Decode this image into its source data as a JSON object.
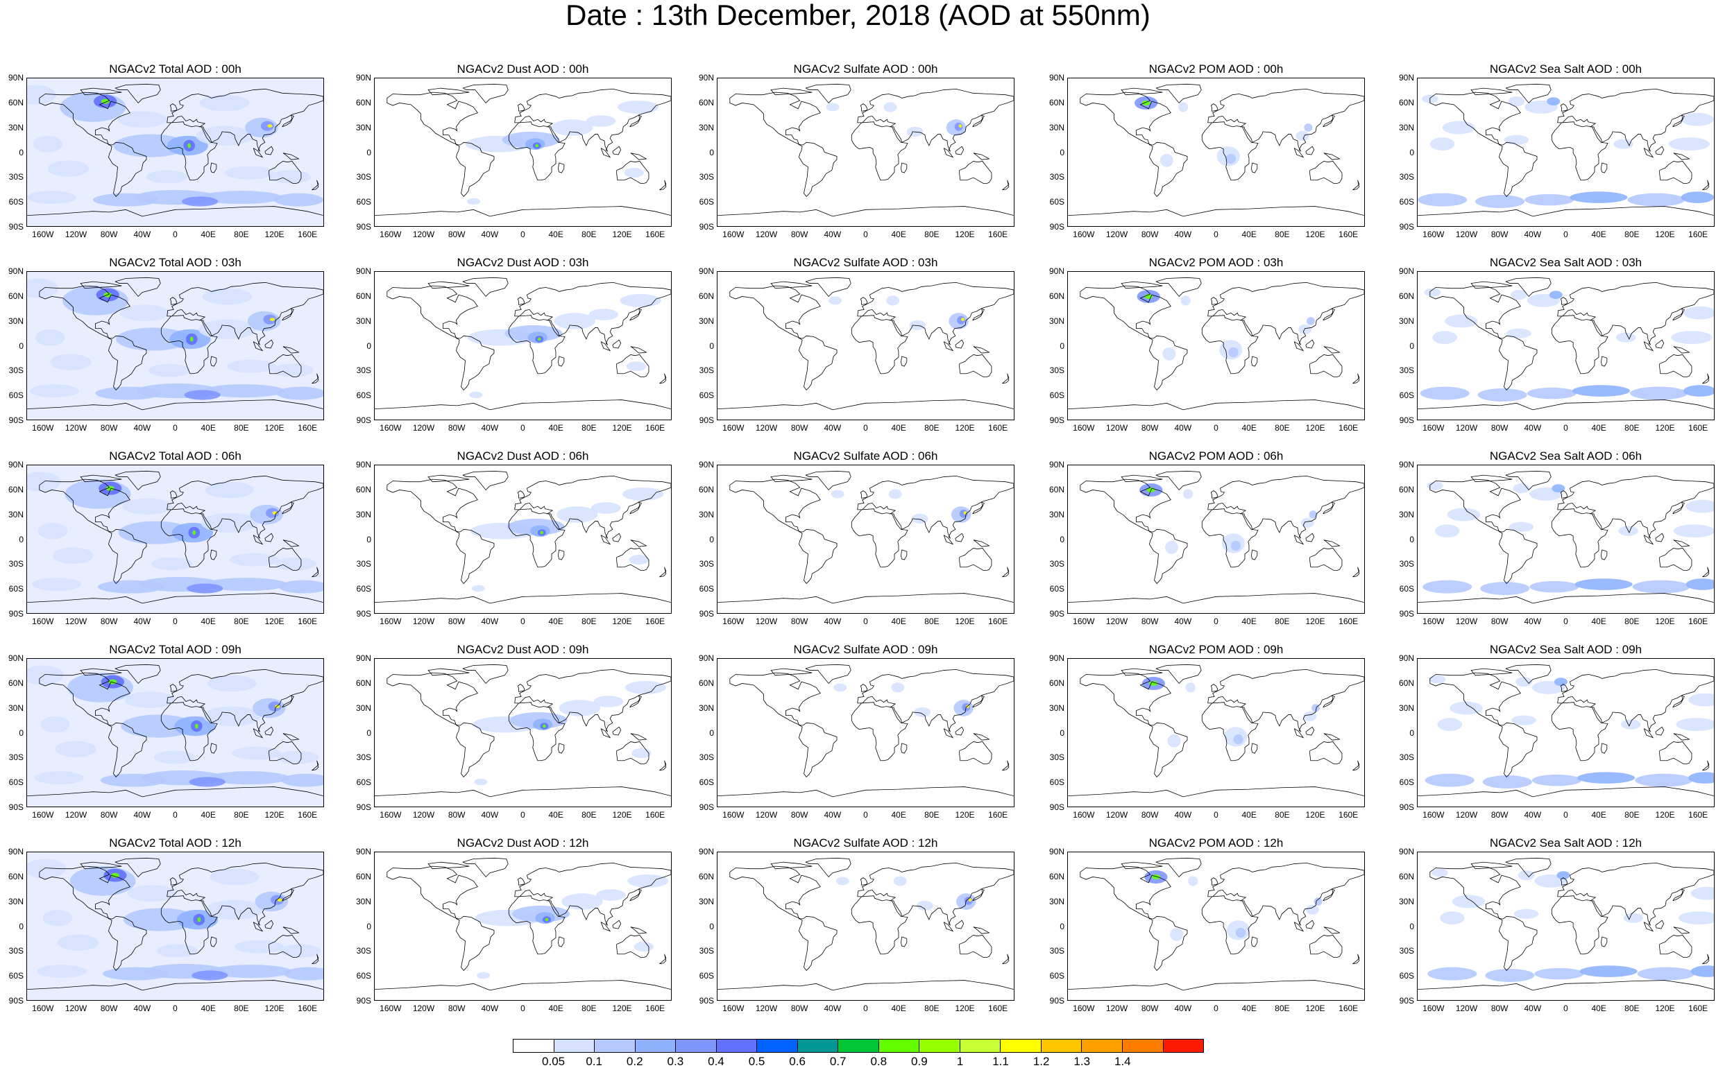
{
  "title": "Date : 13th December, 2018 (AOD at 550nm)",
  "lat_labels": [
    "90N",
    "60N",
    "30N",
    "0",
    "30S",
    "60S",
    "90S"
  ],
  "lon_labels": [
    "160W",
    "120W",
    "80W",
    "40W",
    "0",
    "40E",
    "80E",
    "120E",
    "160E"
  ],
  "species": [
    "total",
    "dust",
    "sulfate",
    "pom",
    "seasalt"
  ],
  "panels": [
    [
      "NGACv2 Total AOD : 00h",
      "NGACv2 Dust AOD : 00h",
      "NGACv2 Sulfate AOD : 00h",
      "NGACv2 POM AOD : 00h",
      "NGACv2 Sea Salt AOD : 00h"
    ],
    [
      "NGACv2 Total AOD : 03h",
      "NGACv2 Dust AOD : 03h",
      "NGACv2 Sulfate AOD : 03h",
      "NGACv2 POM AOD : 03h",
      "NGACv2 Sea Salt AOD : 03h"
    ],
    [
      "NGACv2 Total AOD : 06h",
      "NGACv2 Dust AOD : 06h",
      "NGACv2 Sulfate AOD : 06h",
      "NGACv2 POM AOD : 06h",
      "NGACv2 Sea Salt AOD : 06h"
    ],
    [
      "NGACv2 Total AOD : 09h",
      "NGACv2 Dust AOD : 09h",
      "NGACv2 Sulfate AOD : 09h",
      "NGACv2 POM AOD : 09h",
      "NGACv2 Sea Salt  AOD : 09h"
    ],
    [
      "NGACv2 Total AOD  : 12h",
      "NGACv2 Dust AOD : 12h",
      "NGACv2 Sulfate AOD : 12h",
      "NGACv2 POM  AOD : 12h",
      "NGACv2 Sea Salt  AOD : 12h"
    ]
  ],
  "colorbar": {
    "labels": [
      "0.05",
      "0.1",
      "0.2",
      "0.3",
      "0.4",
      "0.5",
      "0.6",
      "0.7",
      "0.8",
      "0.9",
      "1",
      "1.1",
      "1.2",
      "1.3",
      "1.4"
    ],
    "colors": [
      "#ffffff",
      "#d6e2ff",
      "#b5c9ff",
      "#8fb2ff",
      "#7f96ff",
      "#6370ff",
      "#0063ff",
      "#009696",
      "#00c633",
      "#63ff00",
      "#96ff00",
      "#c6ff33",
      "#ffff00",
      "#ffc600",
      "#ffa000",
      "#ff7c00",
      "#ff1900"
    ]
  }
}
